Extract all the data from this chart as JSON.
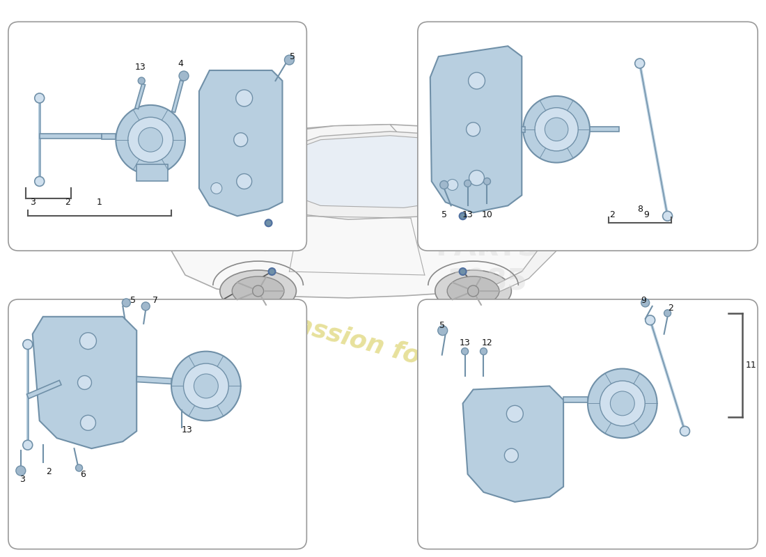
{
  "background_color": "#ffffff",
  "box_edge_color": "#999999",
  "box_face_color": "#ffffff",
  "part_fill": "#b8cfe0",
  "part_edge": "#7090a8",
  "part_dark": "#6080a0",
  "part_light": "#d0e0ee",
  "screw_fill": "#a0b8cc",
  "line_color": "#555555",
  "label_color": "#111111",
  "label_fontsize": 9,
  "watermark_logo_color": "#d5d5d5",
  "watermark_text_color": "#d8c860",
  "car_line_color": "#888888",
  "car_fill": "#f5f5f5",
  "leader_color": "#333333"
}
